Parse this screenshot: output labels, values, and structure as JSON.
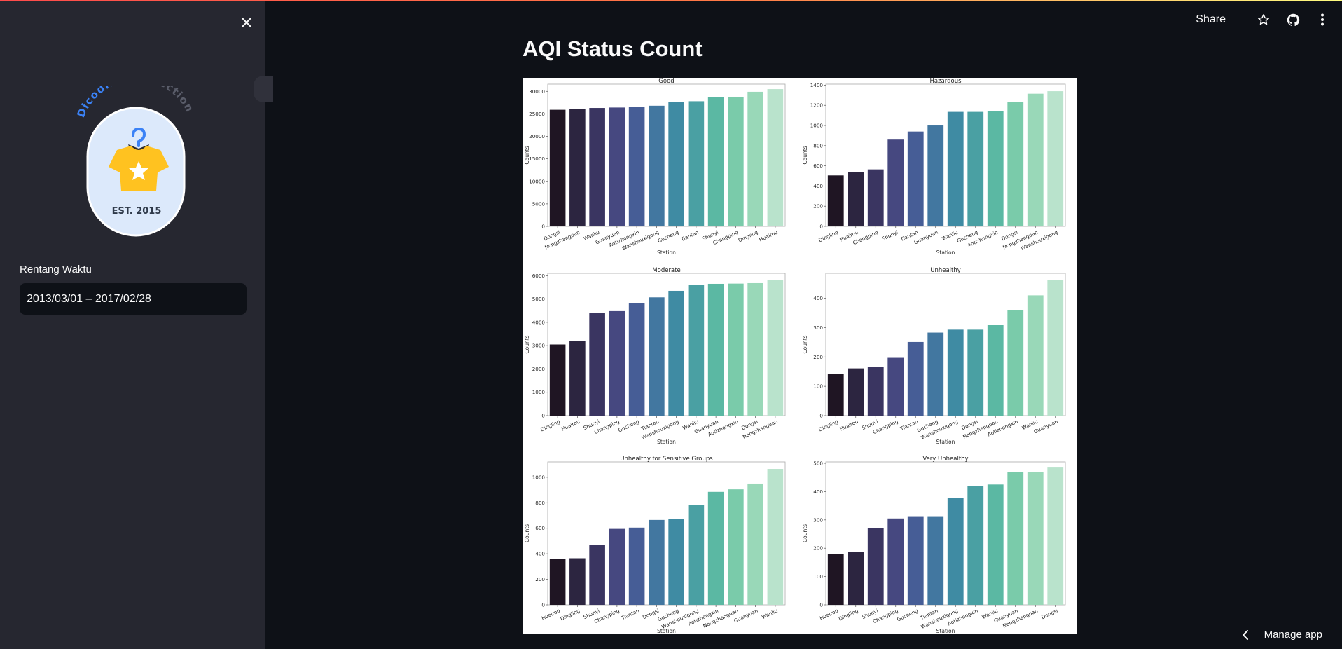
{
  "page": {
    "title": "AQI Status Count"
  },
  "header": {
    "share_label": "Share"
  },
  "sidebar": {
    "logo": {
      "arc_text_1": "Dicoding",
      "arc_text_2": "Collection",
      "est": "EST. 2015"
    },
    "date_label": "Rentang Waktu",
    "date_value": "2013/03/01 – 2017/02/28"
  },
  "footer": {
    "manage_label": "Manage app"
  },
  "colors": {
    "palette": [
      "#1f1523",
      "#2c2540",
      "#3a3561",
      "#464880",
      "#465d96",
      "#4277a0",
      "#3f8ba3",
      "#4aa0a3",
      "#5bb8a3",
      "#7acbaa",
      "#99d8b8",
      "#b9e3cc"
    ]
  },
  "chart_data": [
    {
      "type": "bar",
      "title": "Good",
      "xlabel": "Station",
      "ylabel": "Counts",
      "categories": [
        "Dongsi",
        "Nongzhanguan",
        "Wanliu",
        "Guanyuan",
        "Aotizhongxin",
        "Wanshouxigong",
        "Gucheng",
        "Tiantan",
        "Shunyi",
        "Changping",
        "Dingling",
        "Huairou"
      ],
      "values": [
        25900,
        26100,
        26300,
        26400,
        26500,
        26800,
        27700,
        27800,
        28700,
        28800,
        29900,
        30500
      ],
      "yticks": [
        0,
        5000,
        10000,
        15000,
        20000,
        25000,
        30000
      ],
      "ylim": [
        0,
        31600
      ]
    },
    {
      "type": "bar",
      "title": "Hazardous",
      "xlabel": "Station",
      "ylabel": "Counts",
      "categories": [
        "Dingling",
        "Huairou",
        "Changping",
        "Shunyi",
        "Tiantan",
        "Guanyuan",
        "Wanliu",
        "Gucheng",
        "Aotizhongxin",
        "Dongsi",
        "Nongzhanguan",
        "Wanshouxigong"
      ],
      "values": [
        505,
        540,
        565,
        860,
        940,
        1000,
        1135,
        1135,
        1140,
        1235,
        1315,
        1340
      ],
      "yticks": [
        0,
        200,
        400,
        600,
        800,
        1000,
        1200,
        1400
      ],
      "ylim": [
        0,
        1410
      ]
    },
    {
      "type": "bar",
      "title": "Moderate",
      "xlabel": "Station",
      "ylabel": "Counts",
      "categories": [
        "Dingling",
        "Huairou",
        "Shunyi",
        "Changping",
        "Gucheng",
        "Tiantan",
        "Wanshouxigong",
        "Wanliu",
        "Guanyuan",
        "Aotizhongxin",
        "Dongsi",
        "Nongzhanguan"
      ],
      "values": [
        3050,
        3200,
        4400,
        4480,
        4830,
        5070,
        5350,
        5590,
        5650,
        5660,
        5680,
        5800
      ],
      "yticks": [
        0,
        1000,
        2000,
        3000,
        4000,
        5000,
        6000
      ],
      "ylim": [
        0,
        6100
      ]
    },
    {
      "type": "bar",
      "title": "Unhealthy",
      "xlabel": "Station",
      "ylabel": "Counts",
      "categories": [
        "Dingling",
        "Huairou",
        "Shunyi",
        "Changping",
        "Tiantan",
        "Gucheng",
        "Wanshouxigong",
        "Dongsi",
        "Nongzhanguan",
        "Aotizhongxin",
        "Wanliu",
        "Guanyuan"
      ],
      "values": [
        143,
        161,
        167,
        197,
        251,
        283,
        293,
        293,
        310,
        360,
        410,
        462
      ],
      "yticks": [
        0,
        100,
        200,
        300,
        400
      ],
      "ylim": [
        0,
        485
      ]
    },
    {
      "type": "bar",
      "title": "Unhealthy for Sensitive Groups",
      "xlabel": "Station",
      "ylabel": "Counts",
      "categories": [
        "Huairou",
        "Dingling",
        "Shunyi",
        "Changping",
        "Tiantan",
        "Dongsi",
        "Gucheng",
        "Wanshouxigong",
        "Aotizhongxin",
        "Nongzhanguan",
        "Guanyuan",
        "Wanliu"
      ],
      "values": [
        360,
        365,
        470,
        595,
        605,
        665,
        670,
        780,
        885,
        905,
        950,
        1065
      ],
      "yticks": [
        0,
        200,
        400,
        600,
        800,
        1000
      ],
      "ylim": [
        0,
        1120
      ]
    },
    {
      "type": "bar",
      "title": "Very Unhealthy",
      "xlabel": "Station",
      "ylabel": "Counts",
      "categories": [
        "Huairou",
        "Dingling",
        "Shunyi",
        "Changping",
        "Gucheng",
        "Tiantan",
        "Wanshouxigong",
        "Aotizhongxin",
        "Wanliu",
        "Guanyuan",
        "Nongzhanguan",
        "Dongsi"
      ],
      "values": [
        180,
        187,
        271,
        305,
        313,
        313,
        378,
        420,
        425,
        468,
        468,
        485
      ],
      "yticks": [
        0,
        100,
        200,
        300,
        400,
        500
      ],
      "ylim": [
        0,
        505
      ]
    }
  ]
}
